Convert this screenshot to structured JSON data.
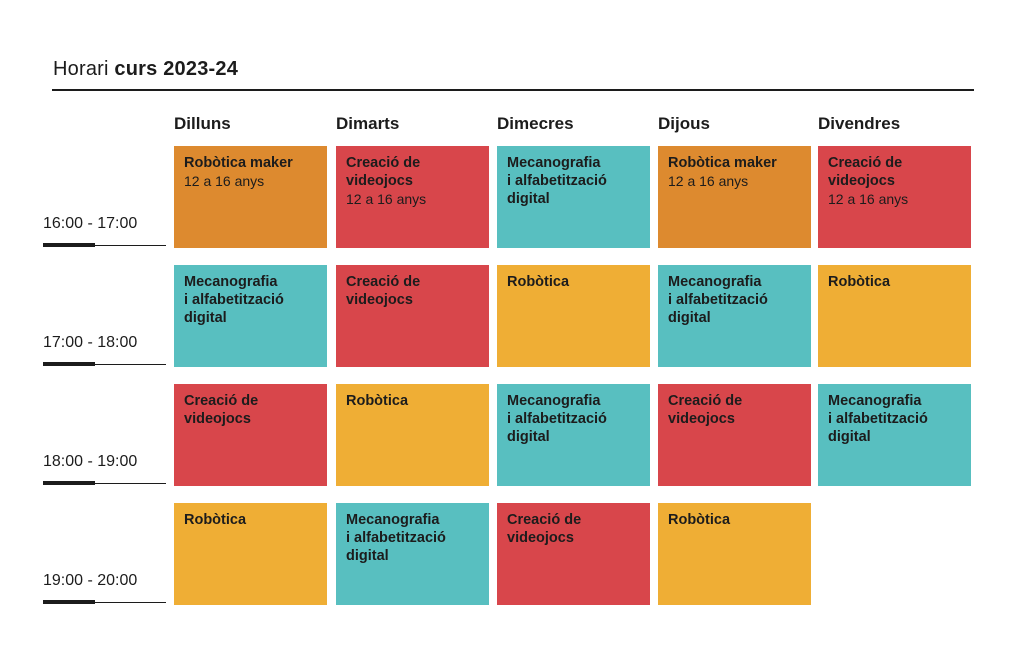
{
  "header": {
    "title_light": "Horari",
    "title_bold": "curs 2023-24"
  },
  "days": [
    "Dilluns",
    "Dimarts",
    "Dimecres",
    "Dijous",
    "Divendres"
  ],
  "time_slots": [
    "16:00 - 17:00",
    "17:00 - 18:00",
    "18:00 - 19:00",
    "19:00 - 20:00"
  ],
  "colors": {
    "orange": "#dd8a2f",
    "red": "#d8464b",
    "teal": "#58bfc0",
    "yellow": "#efae35"
  },
  "grid": [
    [
      {
        "name": "Robòtica maker",
        "age": "12 a 16 anys",
        "color": "orange"
      },
      {
        "name": "Creació de\nvideojocs",
        "age": "12 a 16 anys",
        "color": "red"
      },
      {
        "name": "Mecanografia\ni alfabetització\ndigital",
        "age": "",
        "color": "teal"
      },
      {
        "name": "Robòtica maker",
        "age": "12 a 16 anys",
        "color": "orange"
      },
      {
        "name": "Creació de\nvideojocs",
        "age": "12 a 16 anys",
        "color": "red"
      }
    ],
    [
      {
        "name": "Mecanografia\ni alfabetització\ndigital",
        "age": "",
        "color": "teal"
      },
      {
        "name": "Creació de\nvideojocs",
        "age": "",
        "color": "red"
      },
      {
        "name": "Robòtica",
        "age": "",
        "color": "yellow"
      },
      {
        "name": "Mecanografia\ni alfabetització\ndigital",
        "age": "",
        "color": "teal"
      },
      {
        "name": "Robòtica",
        "age": "",
        "color": "yellow"
      }
    ],
    [
      {
        "name": "Creació de\nvideojocs",
        "age": "",
        "color": "red"
      },
      {
        "name": "Robòtica",
        "age": "",
        "color": "yellow"
      },
      {
        "name": "Mecanografia\ni alfabetització\ndigital",
        "age": "",
        "color": "teal"
      },
      {
        "name": "Creació de\nvideojocs",
        "age": "",
        "color": "red"
      },
      {
        "name": "Mecanografia\ni alfabetització\ndigital",
        "age": "",
        "color": "teal"
      }
    ],
    [
      {
        "name": "Robòtica",
        "age": "",
        "color": "yellow"
      },
      {
        "name": "Mecanografia\ni alfabetització\ndigital",
        "age": "",
        "color": "teal"
      },
      {
        "name": "Creació de\nvideojocs",
        "age": "",
        "color": "red"
      },
      {
        "name": "Robòtica",
        "age": "",
        "color": "yellow"
      },
      null
    ]
  ]
}
